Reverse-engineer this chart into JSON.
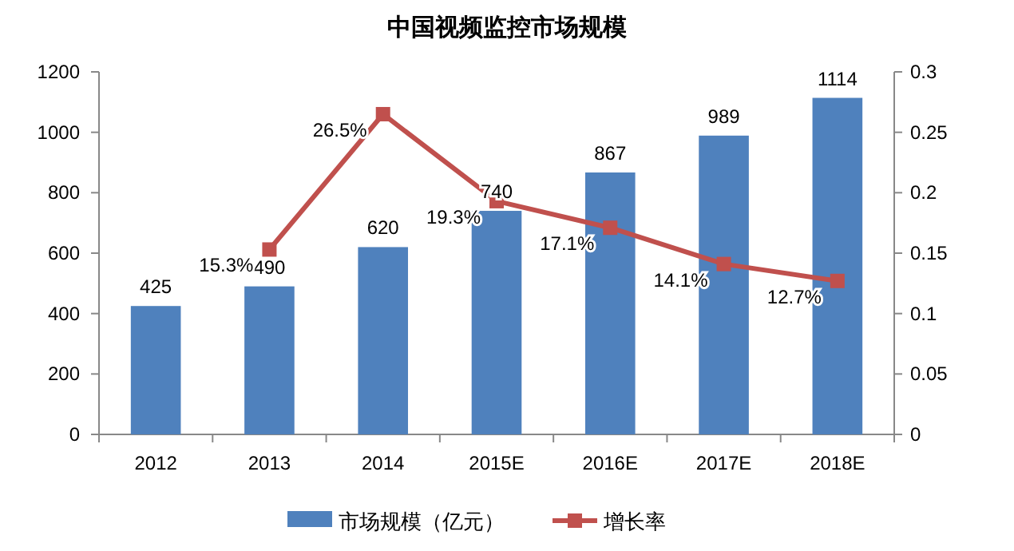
{
  "chart_data": {
    "type": "bar",
    "title": "中国视频监控市场规模",
    "categories": [
      "2012",
      "2013",
      "2014",
      "2015E",
      "2016E",
      "2017E",
      "2018E"
    ],
    "series": [
      {
        "name": "市场规模（亿元）",
        "color": "#4f81bd",
        "values": [
          425,
          490,
          620,
          740,
          867,
          989,
          1114
        ],
        "value_labels": [
          "425",
          "490",
          "620",
          "740",
          "867",
          "989",
          "1114"
        ]
      },
      {
        "name": "增长率",
        "type": "line",
        "axis": "y2",
        "color": "#c0504d",
        "values": [
          null,
          0.153,
          0.265,
          0.193,
          0.171,
          0.141,
          0.127
        ],
        "value_labels": [
          null,
          "15.3%",
          "26.5%",
          "19.3%",
          "17.1%",
          "14.1%",
          "12.7%"
        ]
      }
    ],
    "ylim": [
      0,
      1200
    ],
    "yticks": [
      0,
      200,
      400,
      600,
      800,
      1000,
      1200
    ],
    "y2lim": [
      0,
      0.3
    ],
    "y2ticks": [
      0,
      0.05,
      0.1,
      0.15,
      0.2,
      0.25,
      0.3
    ],
    "marker": "square",
    "line_style": "solid",
    "grid": false,
    "legend": "bottom"
  }
}
